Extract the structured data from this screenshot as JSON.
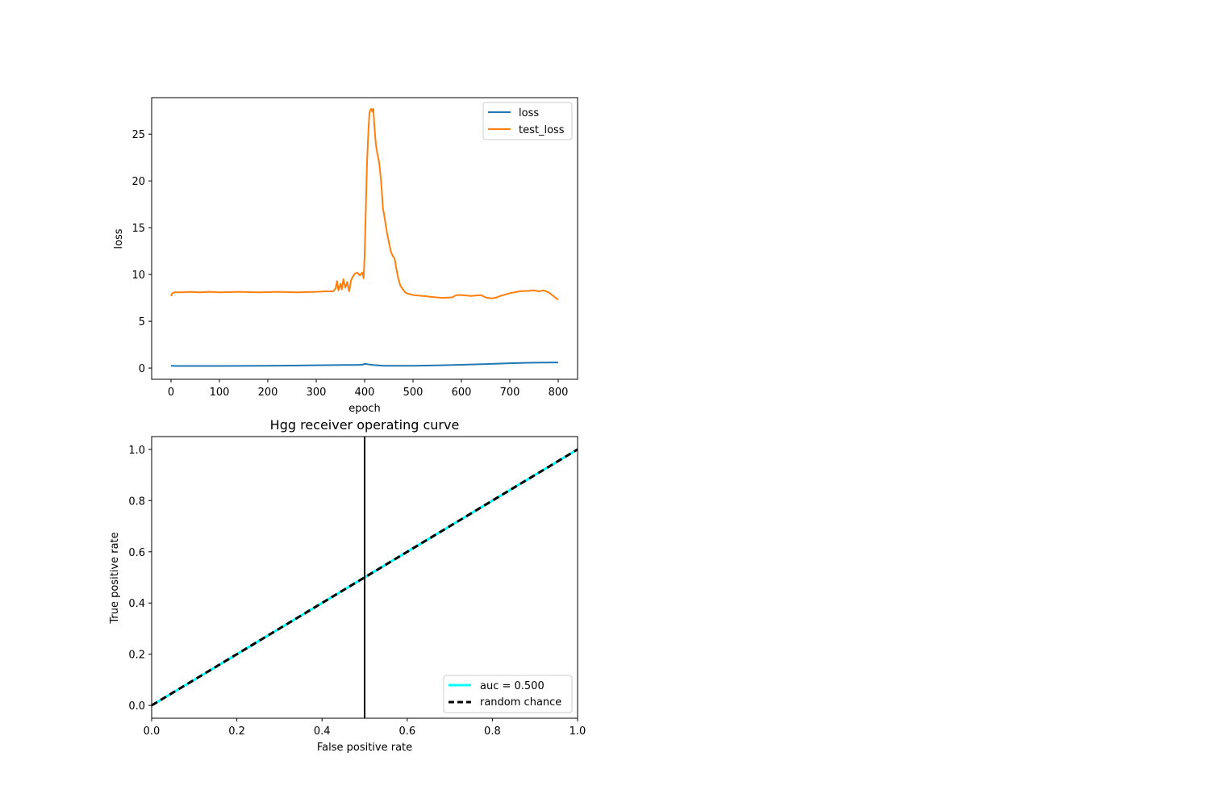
{
  "chart_data": [
    {
      "type": "line",
      "title": "",
      "xlabel": "epoch",
      "ylabel": "loss",
      "xlim": [
        -40,
        840
      ],
      "ylim": [
        -1.2,
        28.9
      ],
      "xticks": [
        0,
        100,
        200,
        300,
        400,
        500,
        600,
        700,
        800
      ],
      "yticks": [
        0,
        5,
        10,
        15,
        20,
        25
      ],
      "grid": false,
      "legend_position": "upper right",
      "series": [
        {
          "name": "loss",
          "color": "#1f77b4",
          "x": [
            0,
            10,
            50,
            100,
            150,
            200,
            250,
            300,
            340,
            360,
            380,
            395,
            400,
            405,
            410,
            420,
            440,
            460,
            500,
            550,
            600,
            650,
            700,
            750,
            800
          ],
          "y": [
            0.25,
            0.22,
            0.22,
            0.22,
            0.23,
            0.25,
            0.27,
            0.3,
            0.32,
            0.33,
            0.33,
            0.35,
            0.45,
            0.42,
            0.38,
            0.32,
            0.25,
            0.24,
            0.25,
            0.28,
            0.35,
            0.43,
            0.52,
            0.58,
            0.6
          ]
        },
        {
          "name": "test_loss",
          "color": "#ff7f0e",
          "x": [
            0,
            3,
            8,
            20,
            40,
            60,
            80,
            100,
            140,
            180,
            220,
            260,
            300,
            320,
            335,
            340,
            343,
            346,
            350,
            353,
            356,
            360,
            364,
            368,
            372,
            376,
            380,
            385,
            390,
            395,
            398,
            400,
            402,
            405,
            408,
            410,
            412,
            414,
            416,
            418,
            420,
            423,
            426,
            430,
            434,
            438,
            440,
            443,
            446,
            450,
            454,
            458,
            462,
            466,
            470,
            474,
            478,
            482,
            486,
            490,
            500,
            520,
            540,
            560,
            580,
            590,
            600,
            620,
            640,
            650,
            660,
            670,
            680,
            700,
            720,
            740,
            750,
            760,
            770,
            780,
            790,
            800
          ],
          "y": [
            7.7,
            8.0,
            8.1,
            8.1,
            8.15,
            8.1,
            8.15,
            8.1,
            8.15,
            8.1,
            8.15,
            8.1,
            8.15,
            8.2,
            8.2,
            8.5,
            9.3,
            8.3,
            9.0,
            8.4,
            9.5,
            8.6,
            9.2,
            8.2,
            9.4,
            9.8,
            10.1,
            10.2,
            9.9,
            10.2,
            9.6,
            12.0,
            16.0,
            22.0,
            25.5,
            27.3,
            27.6,
            27.7,
            27.4,
            27.7,
            26.0,
            24.0,
            23.0,
            22.0,
            20.0,
            17.0,
            16.5,
            15.5,
            14.5,
            13.5,
            12.5,
            12.0,
            11.7,
            10.5,
            9.5,
            8.8,
            8.5,
            8.2,
            8.0,
            7.95,
            7.8,
            7.7,
            7.6,
            7.5,
            7.55,
            7.8,
            7.8,
            7.7,
            7.8,
            7.55,
            7.45,
            7.5,
            7.7,
            8.0,
            8.2,
            8.25,
            8.3,
            8.2,
            8.3,
            8.1,
            7.7,
            7.3
          ]
        }
      ]
    },
    {
      "type": "line",
      "title": "Hgg receiver operating curve",
      "xlabel": "False positive rate",
      "ylabel": "True positive rate",
      "xlim": [
        0,
        1
      ],
      "ylim": [
        -0.05,
        1.05
      ],
      "xticks": [
        0.0,
        0.2,
        0.4,
        0.6,
        0.8,
        1.0
      ],
      "yticks": [
        0.0,
        0.2,
        0.4,
        0.6,
        0.8,
        1.0
      ],
      "grid": false,
      "legend_position": "lower right",
      "vertical_line": {
        "x": 0.5,
        "color": "#000000"
      },
      "series": [
        {
          "name": "auc = 0.500",
          "color": "#00ffff",
          "x": [
            0,
            1
          ],
          "y": [
            0,
            1
          ]
        },
        {
          "name": "random chance",
          "color": "#000000",
          "dashed": true,
          "x": [
            0,
            1
          ],
          "y": [
            0,
            1
          ]
        }
      ]
    }
  ]
}
